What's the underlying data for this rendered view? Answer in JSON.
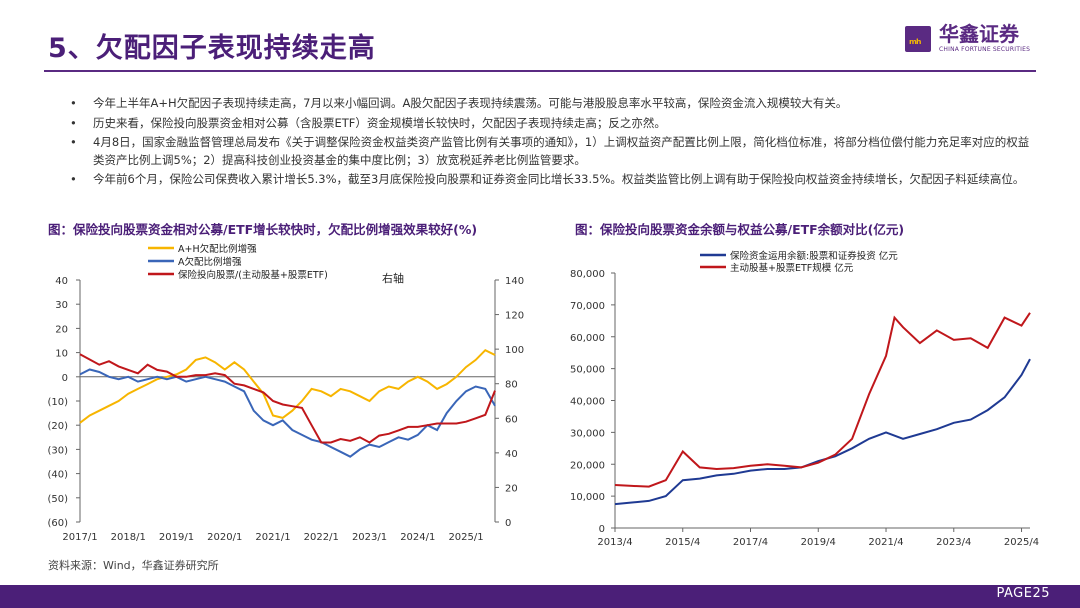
{
  "header": {
    "title": "5、欠配因子表现持续走高",
    "logo_cn": "华鑫证券",
    "logo_en": "CHINA FORTUNE SECURITIES",
    "logo_mark": "ₘₕ"
  },
  "bullets": [
    "今年上半年A+H欠配因子表现持续走高，7月以来小幅回调。A股欠配因子表现持续震荡。可能与港股股息率水平较高，保险资金流入规模较大有关。",
    "历史来看，保险投向股票资金相对公募（含股票ETF）资金规模增长较快时，欠配因子表现持续走高；反之亦然。",
    "4月8日，国家金融监督管理总局发布《关于调整保险资金权益类资产监管比例有关事项的通知》，1）上调权益资产配置比例上限，简化档位标准，将部分档位偿付能力充足率对应的权益类资产比例上调5%；2）提高科技创业投资基金的集中度比例；3）放宽税延养老比例监管要求。",
    "今年前6个月，保险公司保费收入累计增长5.3%，截至3月底保险投向股票和证券资金同比增长33.5%。权益类监管比例上调有助于保险投向权益资金持续增长，欠配因子料延续高位。"
  ],
  "bullet_marker": "•",
  "source": "资料来源：Wind，华鑫证券研究所",
  "page": "PAGE25",
  "colors": {
    "yellow": "#f7b500",
    "blue": "#3a66b8",
    "red": "#c0171b",
    "navy": "#1f3a93",
    "purple": "#4b1f78"
  },
  "chart_data": [
    {
      "type": "line",
      "title": "图：保险投向股票资金相对公募/ETF增长较快时，欠配比例增强效果较好(%)",
      "annotation": "右轴",
      "x_tick_labels": [
        "2017/1",
        "2018/1",
        "2019/1",
        "2020/1",
        "2021/1",
        "2022/1",
        "2023/1",
        "2024/1",
        "2025/1"
      ],
      "x_range": [
        2017.0,
        2025.6
      ],
      "left_axis": {
        "range": [
          -60,
          40
        ],
        "ticks": [
          40,
          30,
          20,
          10,
          0,
          -10,
          -20,
          -30,
          -40,
          -50,
          -60
        ],
        "tick_labels": [
          "40",
          "30",
          "20",
          "10",
          "0",
          "(10)",
          "(20)",
          "(30)",
          "(40)",
          "(50)",
          "(60)"
        ]
      },
      "right_axis": {
        "range": [
          0,
          140
        ],
        "ticks": [
          140,
          120,
          100,
          80,
          60,
          40,
          20,
          0
        ],
        "tick_labels": [
          "140",
          "120",
          "100",
          "80",
          "60",
          "40",
          "20",
          "0"
        ]
      },
      "series": [
        {
          "name": "A+H欠配比例增强",
          "axis": "left",
          "color_key": "yellow",
          "x": [
            2017.0,
            2017.2,
            2017.4,
            2017.6,
            2017.8,
            2018.0,
            2018.2,
            2018.4,
            2018.6,
            2018.8,
            2019.0,
            2019.2,
            2019.4,
            2019.6,
            2019.8,
            2020.0,
            2020.2,
            2020.4,
            2020.6,
            2020.8,
            2021.0,
            2021.2,
            2021.4,
            2021.6,
            2021.8,
            2022.0,
            2022.2,
            2022.4,
            2022.6,
            2022.8,
            2023.0,
            2023.2,
            2023.4,
            2023.6,
            2023.8,
            2024.0,
            2024.2,
            2024.4,
            2024.6,
            2024.8,
            2025.0,
            2025.2,
            2025.4,
            2025.6
          ],
          "y": [
            -19,
            -16,
            -14,
            -12,
            -10,
            -7,
            -5,
            -3,
            -1,
            0,
            1,
            3,
            7,
            8,
            6,
            3,
            6,
            3,
            -2,
            -7,
            -16,
            -17,
            -14,
            -10,
            -5,
            -6,
            -8,
            -5,
            -6,
            -8,
            -10,
            -6,
            -4,
            -5,
            -2,
            0,
            -2,
            -5,
            -3,
            0,
            4,
            7,
            11,
            9
          ]
        },
        {
          "name": "A欠配比例增强",
          "axis": "left",
          "color_key": "blue",
          "x": [
            2017.0,
            2017.2,
            2017.4,
            2017.6,
            2017.8,
            2018.0,
            2018.2,
            2018.4,
            2018.6,
            2018.8,
            2019.0,
            2019.2,
            2019.4,
            2019.6,
            2019.8,
            2020.0,
            2020.2,
            2020.4,
            2020.6,
            2020.8,
            2021.0,
            2021.2,
            2021.4,
            2021.6,
            2021.8,
            2022.0,
            2022.2,
            2022.4,
            2022.6,
            2022.8,
            2023.0,
            2023.2,
            2023.4,
            2023.6,
            2023.8,
            2024.0,
            2024.2,
            2024.4,
            2024.6,
            2024.8,
            2025.0,
            2025.2,
            2025.4,
            2025.6
          ],
          "y": [
            1,
            3,
            2,
            0,
            -1,
            0,
            -2,
            -1,
            0,
            -1,
            0,
            -2,
            -1,
            0,
            -1,
            -2,
            -4,
            -6,
            -14,
            -18,
            -20,
            -18,
            -22,
            -24,
            -26,
            -27,
            -29,
            -31,
            -33,
            -30,
            -28,
            -29,
            -27,
            -25,
            -26,
            -24,
            -20,
            -22,
            -15,
            -10,
            -6,
            -4,
            -5,
            -12
          ]
        },
        {
          "name": "保险投向股票/(主动股基+股票ETF)",
          "axis": "right",
          "color_key": "red",
          "x": [
            2017.0,
            2017.2,
            2017.4,
            2017.6,
            2017.8,
            2018.0,
            2018.2,
            2018.4,
            2018.6,
            2018.8,
            2019.0,
            2019.2,
            2019.4,
            2019.6,
            2019.8,
            2020.0,
            2020.2,
            2020.4,
            2020.6,
            2020.8,
            2021.0,
            2021.2,
            2021.4,
            2021.6,
            2021.8,
            2022.0,
            2022.2,
            2022.4,
            2022.6,
            2022.8,
            2023.0,
            2023.2,
            2023.4,
            2023.6,
            2023.8,
            2024.0,
            2024.2,
            2024.4,
            2024.6,
            2024.8,
            2025.0,
            2025.2,
            2025.4,
            2025.6
          ],
          "y": [
            97,
            94,
            91,
            93,
            90,
            88,
            86,
            91,
            88,
            87,
            84,
            84,
            85,
            85,
            86,
            85,
            80,
            79,
            77,
            75,
            70,
            68,
            67,
            66,
            56,
            46,
            46,
            48,
            47,
            49,
            46,
            50,
            51,
            53,
            55,
            55,
            56,
            57,
            57,
            57,
            58,
            60,
            62,
            76
          ]
        }
      ]
    },
    {
      "type": "line",
      "title": "图：保险投向股票资金余额与权益公募/ETF余额对比(亿元)",
      "x_tick_labels": [
        "2013/4",
        "2015/4",
        "2017/4",
        "2019/4",
        "2021/4",
        "2023/4",
        "2025/4"
      ],
      "x_range": [
        2013.25,
        2025.5
      ],
      "y_axis": {
        "range": [
          0,
          80000
        ],
        "ticks": [
          80000,
          70000,
          60000,
          50000,
          40000,
          30000,
          20000,
          10000,
          0
        ],
        "tick_labels": [
          "80,000",
          "70,000",
          "60,000",
          "50,000",
          "40,000",
          "30,000",
          "20,000",
          "10,000",
          "0"
        ]
      },
      "series": [
        {
          "name": "保险资金运用余额:股票和证券投资 亿元",
          "color_key": "navy",
          "x": [
            2013.25,
            2013.75,
            2014.25,
            2014.75,
            2015.25,
            2015.75,
            2016.25,
            2016.75,
            2017.25,
            2017.75,
            2018.25,
            2018.75,
            2019.25,
            2019.75,
            2020.25,
            2020.75,
            2021.25,
            2021.75,
            2022.25,
            2022.75,
            2023.25,
            2023.75,
            2024.25,
            2024.75,
            2025.25,
            2025.5
          ],
          "y": [
            7500,
            8000,
            8500,
            10000,
            15000,
            15500,
            16500,
            17000,
            18000,
            18500,
            18500,
            19000,
            21000,
            22500,
            25000,
            28000,
            30000,
            28000,
            29500,
            31000,
            33000,
            34000,
            37000,
            41000,
            48000,
            53000
          ]
        },
        {
          "name": "主动股基+股票ETF规模 亿元",
          "color_key": "red",
          "x": [
            2013.25,
            2013.75,
            2014.25,
            2014.75,
            2015.25,
            2015.75,
            2016.25,
            2016.75,
            2017.25,
            2017.75,
            2018.25,
            2018.75,
            2019.25,
            2019.75,
            2020.25,
            2020.75,
            2021.25,
            2021.5,
            2021.75,
            2022.25,
            2022.75,
            2023.25,
            2023.75,
            2024.25,
            2024.75,
            2025.25,
            2025.5
          ],
          "y": [
            13500,
            13200,
            13000,
            15000,
            24000,
            19000,
            18500,
            18800,
            19500,
            20000,
            19500,
            19000,
            20500,
            23000,
            28000,
            42000,
            54000,
            66000,
            63000,
            58000,
            62000,
            59000,
            59500,
            56500,
            66000,
            63500,
            67500
          ]
        }
      ]
    }
  ]
}
